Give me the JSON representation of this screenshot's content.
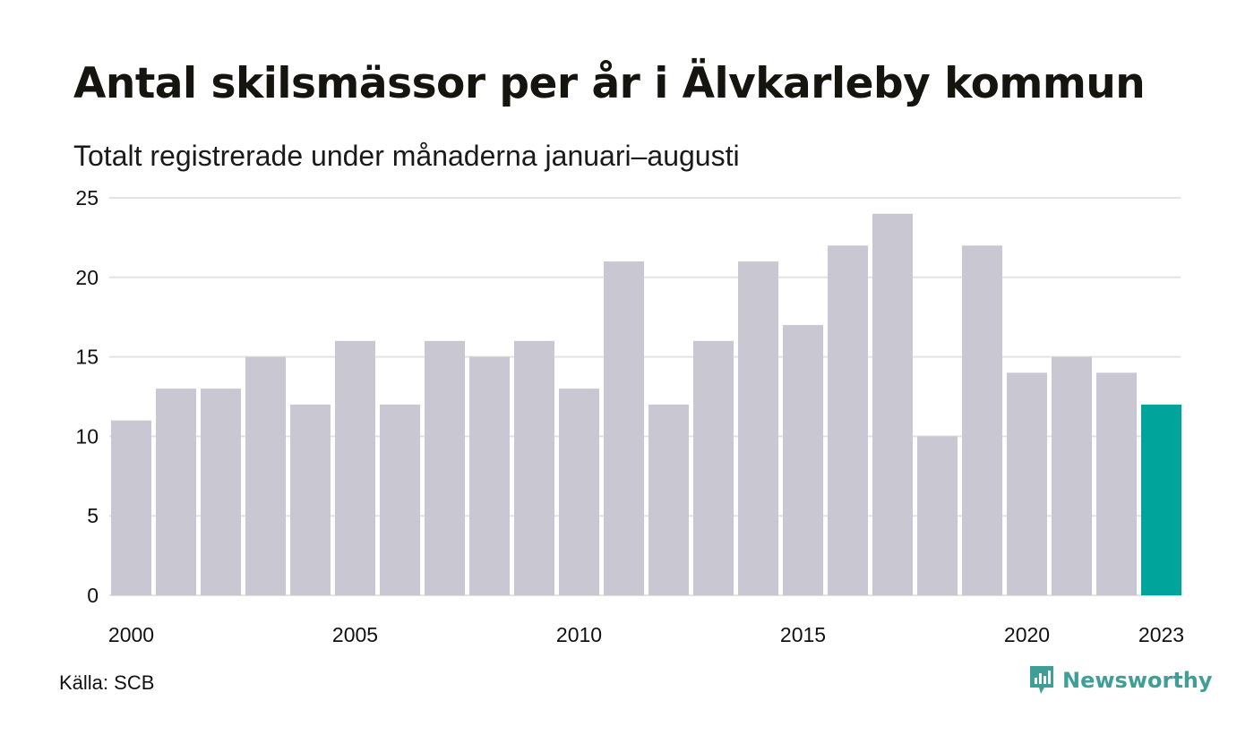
{
  "title": "Antal skilsmässor per år i Älvkarleby kommun",
  "subtitle": "Totalt registrerade under månaderna januari–augusti",
  "source": "Källa: SCB",
  "brand": {
    "name": "Newsworthy",
    "icon": "newsworthy-logo-icon",
    "color": "#3f9f96"
  },
  "colors": {
    "bar": "#c8c7d2",
    "highlight": "#00a49a",
    "grid": "#e3e3e3",
    "axis_text": "#111111"
  },
  "chart_data": {
    "type": "bar",
    "categories": [
      "2000",
      "2001",
      "2002",
      "2003",
      "2004",
      "2005",
      "2006",
      "2007",
      "2008",
      "2009",
      "2010",
      "2011",
      "2012",
      "2013",
      "2014",
      "2015",
      "2016",
      "2017",
      "2018",
      "2019",
      "2020",
      "2021",
      "2022",
      "2023"
    ],
    "values": [
      11,
      13,
      13,
      15,
      12,
      16,
      12,
      16,
      15,
      16,
      13,
      21,
      12,
      16,
      21,
      17,
      22,
      24,
      10,
      22,
      14,
      15,
      14,
      12
    ],
    "highlight_category": "2023",
    "xticks": [
      "2000",
      "2005",
      "2010",
      "2015",
      "2020",
      "2023"
    ],
    "yticks": [
      0,
      5,
      10,
      15,
      20,
      25
    ],
    "ylim": [
      0,
      25
    ],
    "grid": true,
    "xlabel": "",
    "ylabel": ""
  }
}
